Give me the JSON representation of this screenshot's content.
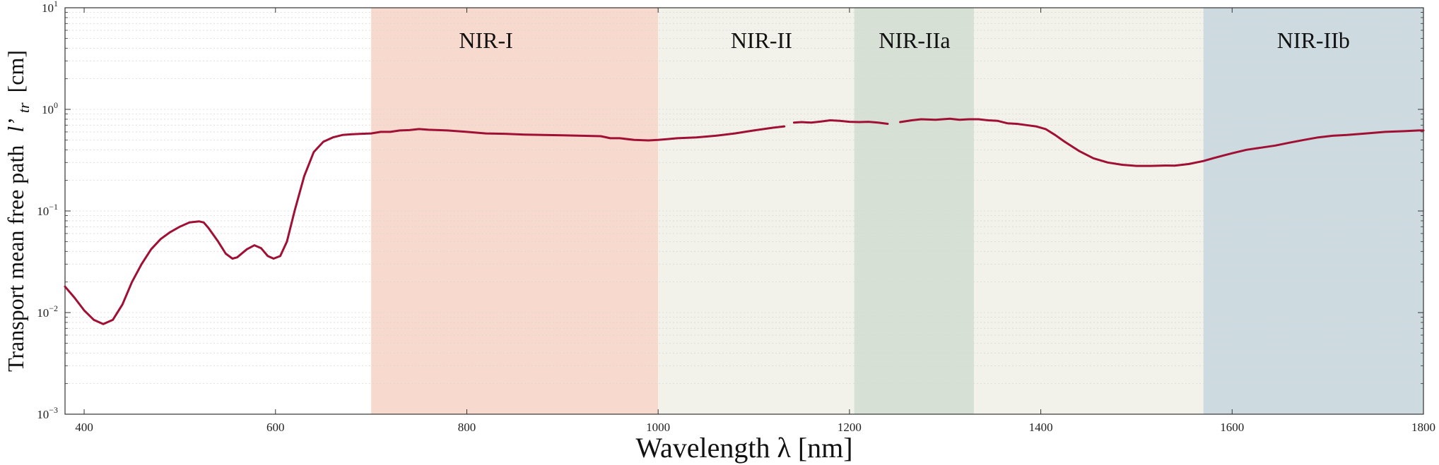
{
  "chart_data": {
    "type": "line",
    "title": "",
    "xlabel": "Wavelength λ [nm]",
    "ylabel_main": "Transport mean free path",
    "ylabel_symbol": "l’",
    "ylabel_subscript": "tr",
    "ylabel_unit": "[cm]",
    "xlim": [
      380,
      1800
    ],
    "ylim": [
      0.001,
      10
    ],
    "yscale": "log",
    "grid": "horizontal minor, dotted",
    "x_ticks": [
      400,
      600,
      800,
      1000,
      1200,
      1400,
      1600,
      1800
    ],
    "y_ticks": [
      {
        "value": 0.001,
        "base": "10",
        "exp": "−3"
      },
      {
        "value": 0.01,
        "base": "10",
        "exp": "−2"
      },
      {
        "value": 0.1,
        "base": "10",
        "exp": "−1"
      },
      {
        "value": 1,
        "base": "10",
        "exp": "0"
      },
      {
        "value": 10,
        "base": "10",
        "exp": "1"
      }
    ],
    "regions": [
      {
        "name": "NIR-I",
        "label": "NIR-I",
        "x0": 700,
        "x1": 1000,
        "color": "#f7d9cd",
        "label_x": 820
      },
      {
        "name": "NIR-II",
        "label": "NIR-II",
        "x0": 1000,
        "x1": 1570,
        "color": "#f3f2ea",
        "label_x": 1108
      },
      {
        "name": "NIR-IIa",
        "label": "NIR-IIa",
        "x0": 1205,
        "x1": 1330,
        "color": "#d6e0d4",
        "label_x": 1268
      },
      {
        "name": "NIR-IIb",
        "label": "NIR-IIb",
        "x0": 1570,
        "x1": 1800,
        "color": "#cddbe0",
        "label_x": 1685
      }
    ],
    "series": [
      {
        "color": "#a01034",
        "segments": [
          [
            [
              380,
              0.018
            ],
            [
              390,
              0.014
            ],
            [
              400,
              0.0105
            ],
            [
              410,
              0.0085
            ],
            [
              420,
              0.0077
            ],
            [
              430,
              0.0085
            ],
            [
              440,
              0.012
            ],
            [
              450,
              0.02
            ],
            [
              460,
              0.03
            ],
            [
              470,
              0.042
            ],
            [
              480,
              0.053
            ],
            [
              490,
              0.062
            ],
            [
              500,
              0.07
            ],
            [
              510,
              0.077
            ],
            [
              520,
              0.079
            ],
            [
              525,
              0.077
            ],
            [
              530,
              0.068
            ],
            [
              540,
              0.05
            ],
            [
              548,
              0.038
            ],
            [
              555,
              0.034
            ],
            [
              560,
              0.035
            ],
            [
              570,
              0.042
            ],
            [
              578,
              0.046
            ],
            [
              585,
              0.043
            ],
            [
              592,
              0.036
            ],
            [
              598,
              0.034
            ],
            [
              605,
              0.036
            ],
            [
              612,
              0.05
            ],
            [
              620,
              0.1
            ],
            [
              630,
              0.22
            ],
            [
              640,
              0.38
            ],
            [
              650,
              0.48
            ],
            [
              660,
              0.53
            ],
            [
              670,
              0.56
            ],
            [
              680,
              0.57
            ],
            [
              690,
              0.575
            ],
            [
              700,
              0.58
            ],
            [
              710,
              0.6
            ],
            [
              720,
              0.6
            ],
            [
              730,
              0.62
            ],
            [
              740,
              0.625
            ],
            [
              750,
              0.64
            ],
            [
              760,
              0.63
            ],
            [
              780,
              0.62
            ],
            [
              800,
              0.6
            ],
            [
              820,
              0.58
            ],
            [
              840,
              0.575
            ],
            [
              860,
              0.565
            ],
            [
              880,
              0.56
            ],
            [
              900,
              0.555
            ],
            [
              920,
              0.55
            ],
            [
              940,
              0.545
            ],
            [
              950,
              0.52
            ],
            [
              960,
              0.52
            ],
            [
              975,
              0.5
            ],
            [
              990,
              0.495
            ],
            [
              1000,
              0.5
            ],
            [
              1010,
              0.51
            ],
            [
              1020,
              0.52
            ],
            [
              1040,
              0.53
            ],
            [
              1060,
              0.55
            ],
            [
              1080,
              0.58
            ],
            [
              1100,
              0.62
            ],
            [
              1120,
              0.66
            ],
            [
              1132,
              0.68
            ]
          ],
          [
            [
              1142,
              0.74
            ],
            [
              1150,
              0.75
            ],
            [
              1160,
              0.74
            ],
            [
              1170,
              0.76
            ],
            [
              1180,
              0.78
            ],
            [
              1190,
              0.77
            ],
            [
              1200,
              0.755
            ],
            [
              1210,
              0.75
            ],
            [
              1220,
              0.755
            ],
            [
              1230,
              0.74
            ],
            [
              1240,
              0.72
            ]
          ],
          [
            [
              1253,
              0.75
            ],
            [
              1265,
              0.78
            ],
            [
              1275,
              0.8
            ],
            [
              1290,
              0.79
            ],
            [
              1305,
              0.81
            ],
            [
              1315,
              0.79
            ],
            [
              1325,
              0.8
            ],
            [
              1335,
              0.8
            ],
            [
              1345,
              0.78
            ],
            [
              1355,
              0.77
            ],
            [
              1365,
              0.73
            ],
            [
              1375,
              0.72
            ],
            [
              1385,
              0.7
            ],
            [
              1395,
              0.68
            ],
            [
              1405,
              0.64
            ],
            [
              1415,
              0.56
            ],
            [
              1425,
              0.48
            ],
            [
              1440,
              0.39
            ],
            [
              1455,
              0.33
            ],
            [
              1470,
              0.3
            ],
            [
              1485,
              0.285
            ],
            [
              1500,
              0.278
            ],
            [
              1515,
              0.278
            ],
            [
              1530,
              0.28
            ],
            [
              1540,
              0.279
            ],
            [
              1555,
              0.29
            ],
            [
              1570,
              0.31
            ],
            [
              1580,
              0.33
            ],
            [
              1590,
              0.35
            ],
            [
              1600,
              0.37
            ],
            [
              1615,
              0.4
            ],
            [
              1630,
              0.42
            ],
            [
              1645,
              0.44
            ],
            [
              1660,
              0.47
            ],
            [
              1675,
              0.5
            ],
            [
              1690,
              0.53
            ],
            [
              1705,
              0.55
            ],
            [
              1720,
              0.56
            ],
            [
              1740,
              0.58
            ],
            [
              1760,
              0.6
            ],
            [
              1780,
              0.61
            ],
            [
              1795,
              0.62
            ],
            [
              1800,
              0.62
            ]
          ]
        ]
      }
    ]
  }
}
